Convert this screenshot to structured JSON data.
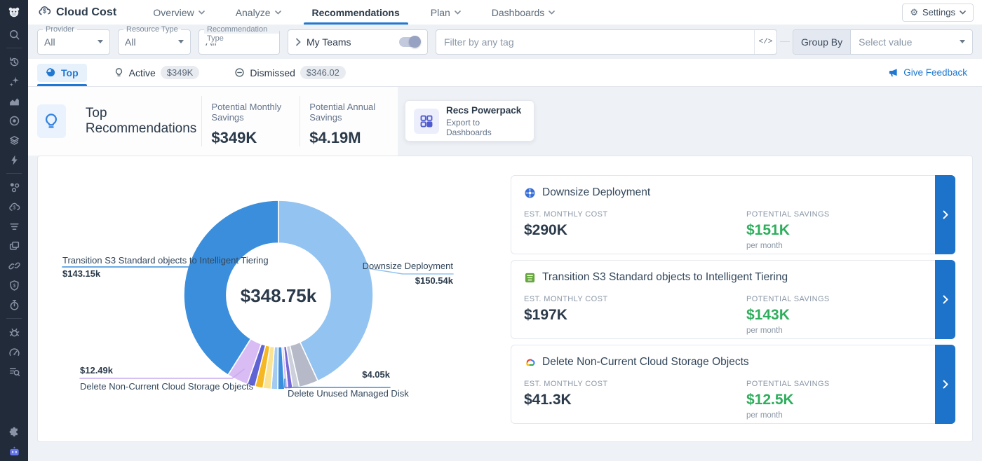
{
  "app": {
    "logo_icon": "kubecost-bear-icon",
    "title": "Cloud Cost",
    "brand_icon": "cloud-dollar-icon"
  },
  "nav": {
    "items": [
      {
        "label": "Overview",
        "dropdown": true,
        "active": false
      },
      {
        "label": "Analyze",
        "dropdown": true,
        "active": false
      },
      {
        "label": "Recommendations",
        "dropdown": false,
        "active": true
      },
      {
        "label": "Plan",
        "dropdown": true,
        "active": false
      },
      {
        "label": "Dashboards",
        "dropdown": true,
        "active": false
      }
    ],
    "settings_label": "Settings"
  },
  "filters": {
    "provider": {
      "label": "Provider",
      "value": "All"
    },
    "resource_type": {
      "label": "Resource Type",
      "value": "All"
    },
    "recommendation_type": {
      "label": "Recommendation Type",
      "value": "All"
    },
    "my_teams": {
      "label": "My Teams",
      "enabled": false
    },
    "tag_filter": {
      "placeholder": "Filter by any tag",
      "value": "",
      "code_icon": "code-brackets-icon"
    },
    "group_by": {
      "label": "Group By",
      "value": "Select value"
    }
  },
  "tabs": {
    "items": [
      {
        "label": "Top",
        "icon": "pie-icon",
        "badge": "",
        "active": true
      },
      {
        "label": "Active",
        "icon": "lightbulb-icon",
        "badge": "$349K",
        "active": false
      },
      {
        "label": "Dismissed",
        "icon": "minus-circle-icon",
        "badge": "$346.02",
        "active": false
      }
    ],
    "feedback_label": "Give Feedback"
  },
  "summary": {
    "title": "Top Recommendations",
    "stats": [
      {
        "label": "Potential Monthly Savings",
        "value": "$349K"
      },
      {
        "label": "Potential Annual Savings",
        "value": "$4.19M"
      }
    ],
    "powerpack": {
      "title": "Recs Powerpack",
      "subtitle": "Export to Dashboards"
    }
  },
  "chart_data": {
    "type": "pie",
    "style": "donut",
    "center_total": "$348.75k",
    "units": "USD thousands per month",
    "legend_position": "callout-labels",
    "segments": [
      {
        "name": "Downsize Deployment",
        "value": 150.54,
        "label": "$150.54k",
        "color": "#93c3f1"
      },
      {
        "name": "",
        "value": 11.5,
        "label": "",
        "color": "#b6bac8"
      },
      {
        "name": "",
        "value": 3.9,
        "label": "",
        "color": "#ccd0db"
      },
      {
        "name": "",
        "value": 2.9,
        "label": "",
        "color": "#7668d6"
      },
      {
        "name": "",
        "value": 1.9,
        "label": "",
        "color": "#d7c3f3"
      },
      {
        "name": "Delete Unused Managed Disk",
        "value": 4.05,
        "label": "$4.05k",
        "color": "#3b8edb"
      },
      {
        "name": "",
        "value": 3.9,
        "label": "",
        "color": "#a3cbf2"
      },
      {
        "name": "",
        "value": 4.8,
        "label": "",
        "color": "#fbe394"
      },
      {
        "name": "",
        "value": 4.8,
        "label": "",
        "color": "#f5b824"
      },
      {
        "name": "",
        "value": 4.8,
        "label": "",
        "color": "#5f63d3"
      },
      {
        "name": "Delete Non-Current Cloud Storage Objects",
        "value": 12.49,
        "label": "$12.49k",
        "color": "#d9bcf3"
      },
      {
        "name": "Transition S3 Standard objects to Intelligent Tiering",
        "value": 143.15,
        "label": "$143.15k",
        "color": "#3b8edb"
      }
    ],
    "callouts": {
      "transition": {
        "name": "Transition S3 Standard objects to Intelligent Tiering",
        "value": "$143.15k"
      },
      "downsize": {
        "name": "Downsize Deployment",
        "value": "$150.54k"
      },
      "noncurrent": {
        "value": "$12.49k",
        "name": "Delete Non-Current Cloud Storage Objects"
      },
      "disk": {
        "value": "$4.05k",
        "name": "Delete Unused Managed Disk"
      }
    }
  },
  "cards": [
    {
      "icon": "kubernetes-icon",
      "title": "Downsize Deployment",
      "est_label": "EST. MONTHLY COST",
      "est_value": "$290K",
      "savings_label": "POTENTIAL SAVINGS",
      "savings_value": "$151K",
      "savings_period": "per month"
    },
    {
      "icon": "s3-tiering-icon",
      "title": "Transition S3 Standard objects to Intelligent Tiering",
      "est_label": "EST. MONTHLY COST",
      "est_value": "$197K",
      "savings_label": "POTENTIAL SAVINGS",
      "savings_value": "$143K",
      "savings_period": "per month"
    },
    {
      "icon": "gcp-cloud-icon",
      "title": "Delete Non-Current Cloud Storage Objects",
      "est_label": "EST. MONTHLY COST",
      "est_value": "$41.3K",
      "savings_label": "POTENTIAL SAVINGS",
      "savings_value": "$12.5K",
      "savings_period": "per month"
    }
  ],
  "sidebar": {
    "icons": [
      "search",
      "divider",
      "history",
      "sparkles",
      "area-chart",
      "radar",
      "layers",
      "bolt",
      "divider",
      "nodes",
      "cloud-dollar",
      "filter-list",
      "windows",
      "link",
      "shield-dollar",
      "timer",
      "divider",
      "bug",
      "gauge",
      "search-list",
      "spacer",
      "puzzle",
      "assistant"
    ]
  },
  "colors": {
    "accent_blue": "#1f78d1",
    "savings_green": "#2fae5d",
    "sidebar_bg": "#222b3a",
    "card_strip": "#1d72ca"
  }
}
